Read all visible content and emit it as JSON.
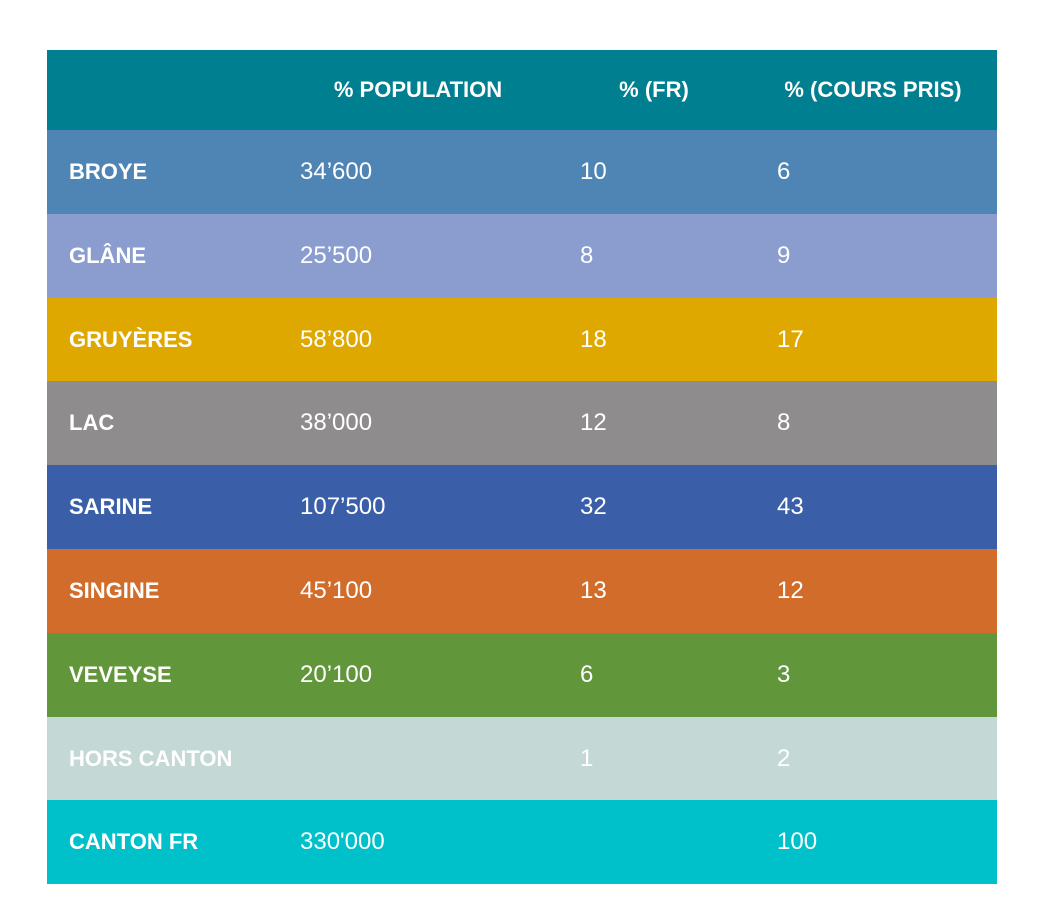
{
  "table": {
    "header_color": "#007f91",
    "columns": [
      "",
      "% POPULATION",
      "% (FR)",
      "% (COURS PRIS)"
    ],
    "rows": [
      {
        "label": "BROYE",
        "population": "34’600",
        "fr": "10",
        "cours": "6",
        "color": "#4f85b5"
      },
      {
        "label": "GLÂNE",
        "population": "25’500",
        "fr": "8",
        "cours": "9",
        "color": "#8b9dcf"
      },
      {
        "label": "GRUYÈRES",
        "population": "58’800",
        "fr": "18",
        "cours": "17",
        "color": "#dfa800"
      },
      {
        "label": "LAC",
        "population": "38’000",
        "fr": "12",
        "cours": "8",
        "color": "#8e8c8c"
      },
      {
        "label": "SARINE",
        "population": "107’500",
        "fr": "32",
        "cours": "43",
        "color": "#3a5fa8"
      },
      {
        "label": "SINGINE",
        "population": "45’100",
        "fr": "13",
        "cours": "12",
        "color": "#d26c2a"
      },
      {
        "label": "VEVEYSE",
        "population": "20’100",
        "fr": "6",
        "cours": "3",
        "color": "#61963b"
      },
      {
        "label": "HORS CANTON",
        "population": "",
        "fr": "1",
        "cours": "2",
        "color": "#c4d9d6"
      },
      {
        "label": "CANTON FR",
        "population": "330'000",
        "fr": "",
        "cours": "100",
        "color": "#00c1ca"
      }
    ]
  }
}
